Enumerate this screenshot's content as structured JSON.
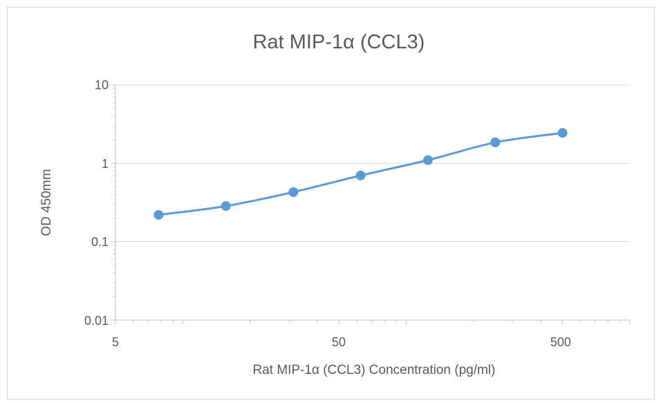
{
  "chart_data": {
    "type": "scatter",
    "title": "Rat MIP-1α (CCL3)",
    "xlabel": "Rat MIP-1α (CCL3) Concentration (pg/ml)",
    "ylabel": "OD 450mm",
    "xscale": "log",
    "yscale": "log",
    "xlim": [
      5,
      1000
    ],
    "ylim": [
      0.01,
      10
    ],
    "xticks": [
      5,
      50,
      500
    ],
    "xtick_labels": [
      "5",
      "50",
      "500"
    ],
    "yticks": [
      0.01,
      0.1,
      1,
      10
    ],
    "ytick_labels": [
      "0.01",
      "0.1",
      "1",
      "10"
    ],
    "grid": "horizontal",
    "legend": "none",
    "line_style": "smoothed",
    "series": [
      {
        "color": "#5b9bd5",
        "x": [
          7.8,
          15.6,
          31.25,
          62.5,
          125,
          250,
          500
        ],
        "y": [
          0.22,
          0.285,
          0.43,
          0.7,
          1.1,
          1.85,
          2.45
        ]
      }
    ]
  }
}
